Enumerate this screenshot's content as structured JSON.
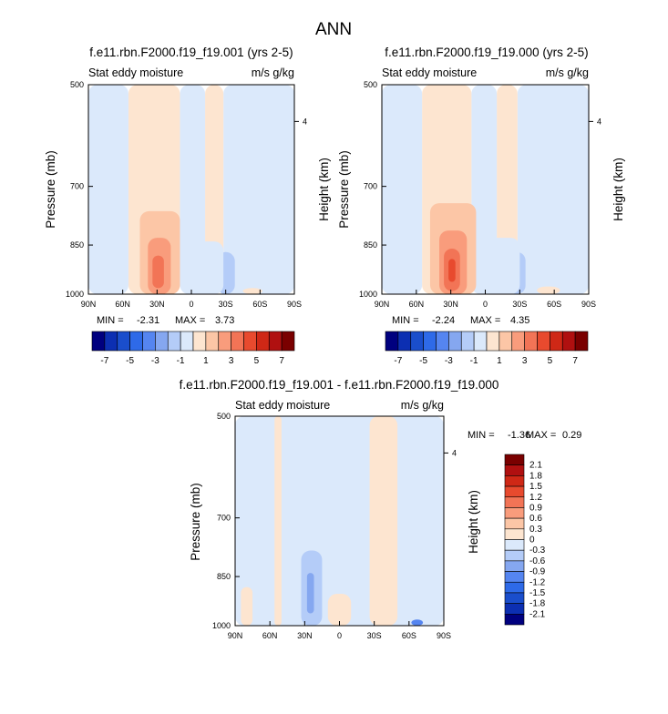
{
  "figure": {
    "title": "ANN"
  },
  "colors": {
    "scale_main": [
      "#00007f",
      "#0c2fb2",
      "#1a4ecc",
      "#2e6ae8",
      "#5585f0",
      "#85a7f0",
      "#b4ccf8",
      "#dbe9fb",
      "#fde5d0",
      "#fcc6a6",
      "#f99c7c",
      "#f27456",
      "#e84a2e",
      "#cf2816",
      "#b01010",
      "#7a0000"
    ],
    "scale_diff": [
      "#00007f",
      "#0c2fb2",
      "#1a4ecc",
      "#2e6ae8",
      "#5585f0",
      "#85a7f0",
      "#b4ccf8",
      "#dbe9fb",
      "#fde5d0",
      "#fcc6a6",
      "#f99c7c",
      "#f27456",
      "#e84a2e",
      "#cf2816",
      "#b01010",
      "#7a0000"
    ]
  },
  "chart_data": [
    {
      "type": "heatmap",
      "title": "f.e11.rbn.F2000.f19_f19.001 (yrs 2-5)",
      "subtitle_left": "Stat eddy moisture",
      "subtitle_right": "m/s g/kg",
      "ylabel": "Pressure (mb)",
      "ylabel_right": "Height (km)",
      "xticks": [
        "90N",
        "60N",
        "30N",
        "0",
        "30S",
        "60S",
        "90S"
      ],
      "yticks": [
        "500",
        "700",
        "850",
        "1000"
      ],
      "yticks_right": [
        "4"
      ],
      "ylim": [
        1000,
        500
      ],
      "min_label": "MIN =",
      "min_value": "-2.31",
      "max_label": "MAX =",
      "max_value": "3.73",
      "regions": [
        {
          "lat": [
            -90,
            -28
          ],
          "p": [
            500,
            1000
          ],
          "level": 7
        },
        {
          "lat": [
            -28,
            -12
          ],
          "p": [
            500,
            1000
          ],
          "level": 8
        },
        {
          "lat": [
            -12,
            10
          ],
          "p": [
            500,
            1000
          ],
          "level": 7
        },
        {
          "lat": [
            10,
            55
          ],
          "p": [
            500,
            1000
          ],
          "level": 8
        },
        {
          "lat": [
            55,
            90
          ],
          "p": [
            500,
            1000
          ],
          "level": 7
        },
        {
          "lat": [
            10,
            45
          ],
          "p": [
            760,
            1000
          ],
          "level": 9
        },
        {
          "lat": [
            18,
            38
          ],
          "p": [
            830,
            1000
          ],
          "level": 10
        },
        {
          "lat": [
            24,
            34
          ],
          "p": [
            880,
            980
          ],
          "level": 11
        },
        {
          "lat": [
            -38,
            -22
          ],
          "p": [
            870,
            1000
          ],
          "level": 6
        },
        {
          "lat": [
            -28,
            0
          ],
          "p": [
            840,
            1000
          ],
          "level": 7
        },
        {
          "lat": [
            -62,
            -45
          ],
          "p": [
            980,
            1000
          ],
          "level": 8
        }
      ],
      "colorbar": {
        "labels": [
          "-7",
          "-5",
          "-3",
          "-1",
          "1",
          "3",
          "5",
          "7"
        ]
      }
    },
    {
      "type": "heatmap",
      "title": "f.e11.rbn.F2000.f19_f19.000 (yrs 2-5)",
      "subtitle_left": "Stat eddy moisture",
      "subtitle_right": "m/s g/kg",
      "ylabel": "Pressure (mb)",
      "ylabel_right": "Height (km)",
      "xticks": [
        "90N",
        "60N",
        "30N",
        "0",
        "30S",
        "60S",
        "90S"
      ],
      "yticks": [
        "500",
        "700",
        "850",
        "1000"
      ],
      "yticks_right": [
        "4"
      ],
      "ylim": [
        1000,
        500
      ],
      "min_label": "MIN =",
      "min_value": "-2.24",
      "max_label": "MAX =",
      "max_value": "4.35",
      "regions": [
        {
          "lat": [
            -90,
            -28
          ],
          "p": [
            500,
            1000
          ],
          "level": 7
        },
        {
          "lat": [
            -28,
            -10
          ],
          "p": [
            500,
            1000
          ],
          "level": 8
        },
        {
          "lat": [
            -10,
            12
          ],
          "p": [
            500,
            1000
          ],
          "level": 7
        },
        {
          "lat": [
            12,
            55
          ],
          "p": [
            500,
            1000
          ],
          "level": 8
        },
        {
          "lat": [
            55,
            90
          ],
          "p": [
            500,
            1000
          ],
          "level": 7
        },
        {
          "lat": [
            8,
            48
          ],
          "p": [
            740,
            1000
          ],
          "level": 9
        },
        {
          "lat": [
            16,
            40
          ],
          "p": [
            810,
            1000
          ],
          "level": 10
        },
        {
          "lat": [
            22,
            36
          ],
          "p": [
            860,
            990
          ],
          "level": 11
        },
        {
          "lat": [
            26,
            32
          ],
          "p": [
            890,
            960
          ],
          "level": 12
        },
        {
          "lat": [
            -35,
            -20
          ],
          "p": [
            870,
            1000
          ],
          "level": 6
        },
        {
          "lat": [
            -30,
            0
          ],
          "p": [
            830,
            1000
          ],
          "level": 7
        },
        {
          "lat": [
            -65,
            -45
          ],
          "p": [
            975,
            1000
          ],
          "level": 8
        }
      ],
      "colorbar": {
        "labels": [
          "-7",
          "-5",
          "-3",
          "-1",
          "1",
          "3",
          "5",
          "7"
        ]
      }
    },
    {
      "type": "heatmap",
      "title": "f.e11.rbn.F2000.f19_f19.001 - f.e11.rbn.F2000.f19_f19.000",
      "subtitle_left": "Stat eddy moisture",
      "subtitle_right": "m/s g/kg",
      "ylabel": "Pressure (mb)",
      "ylabel_right": "Height (km)",
      "xticks": [
        "90N",
        "60N",
        "30N",
        "0",
        "30S",
        "60S",
        "90S"
      ],
      "yticks": [
        "500",
        "700",
        "850",
        "1000"
      ],
      "yticks_right": [
        "4"
      ],
      "ylim": [
        1000,
        500
      ],
      "min_label": "MIN =",
      "min_value": "-1.36",
      "max_label": "MAX =",
      "max_value": "0.29",
      "regions": [
        {
          "lat": [
            -90,
            90
          ],
          "p": [
            500,
            1000
          ],
          "level": 7
        },
        {
          "lat": [
            50,
            56
          ],
          "p": [
            500,
            1000
          ],
          "level": 8
        },
        {
          "lat": [
            -50,
            -26
          ],
          "p": [
            500,
            1000
          ],
          "level": 8
        },
        {
          "lat": [
            15,
            33
          ],
          "p": [
            780,
            1000
          ],
          "level": 6
        },
        {
          "lat": [
            22,
            28
          ],
          "p": [
            840,
            960
          ],
          "level": 5
        },
        {
          "lat": [
            75,
            85
          ],
          "p": [
            880,
            1000
          ],
          "level": 8
        },
        {
          "lat": [
            -10,
            10
          ],
          "p": [
            900,
            1000
          ],
          "level": 8
        },
        {
          "lat": [
            -72,
            -62
          ],
          "p": [
            980,
            1000
          ],
          "level": 4
        }
      ],
      "colorbar": {
        "labels": [
          "2.1",
          "1.8",
          "1.5",
          "1.2",
          "0.9",
          "0.6",
          "0.3",
          "0",
          "-0.3",
          "-0.6",
          "-0.9",
          "-1.2",
          "-1.5",
          "-1.8",
          "-2.1"
        ]
      }
    }
  ]
}
